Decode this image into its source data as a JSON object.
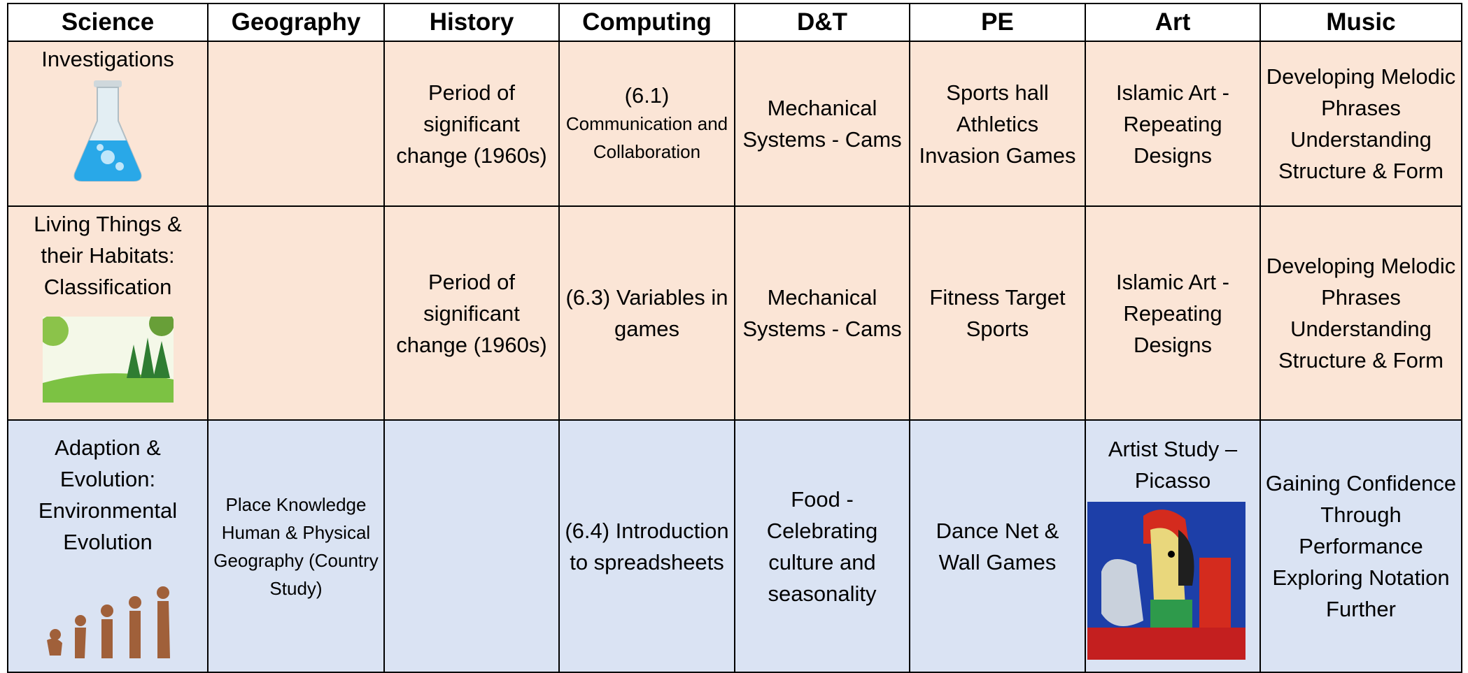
{
  "header": [
    "Science",
    "Geography",
    "History",
    "Computing",
    "D&T",
    "PE",
    "Art",
    "Music"
  ],
  "table": {
    "rows": [
      [
        "Investigations",
        null,
        "Period of significant change (1960s)",
        [
          "(6.1)",
          "Communication and Collaboration"
        ],
        "Mechanical Systems - Cams",
        "Sports hall Athletics Invasion Games",
        "Islamic Art - Repeating Designs",
        "Developing Melodic Phrases Understanding Structure & Form"
      ],
      [
        "Living Things & their Habitats: Classification",
        null,
        "Period of significant change (1960s)",
        "(6.3) Variables in games",
        "Mechanical Systems - Cams",
        "Fitness Target Sports",
        "Islamic Art - Repeating Designs",
        "Developing Melodic Phrases Understanding Structure & Form"
      ],
      [
        "Adaption & Evolution: Environmental Evolution",
        "Place Knowledge Human & Physical Geography (Country Study)",
        null,
        "(6.4) Introduction to spreadsheets",
        "Food - Celebrating culture and seasonality",
        "Dance Net & Wall Games",
        "Artist Study – Picasso",
        "Gaining Confidence Through Performance Exploring Notation Further"
      ]
    ]
  }
}
